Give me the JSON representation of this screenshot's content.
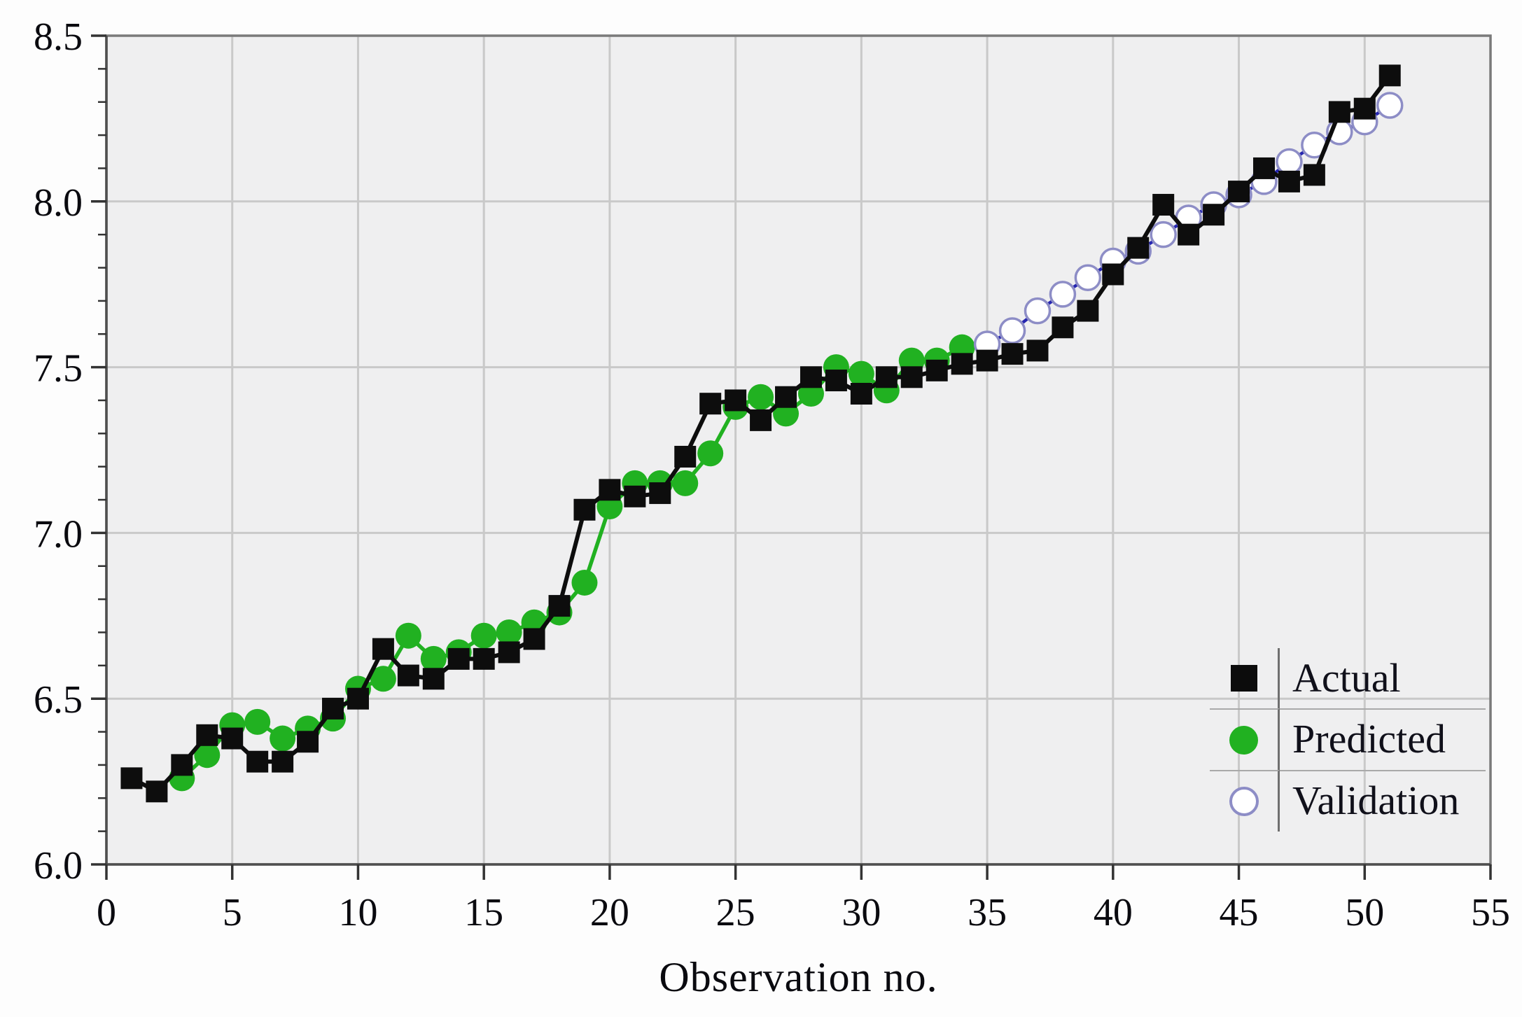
{
  "figure": {
    "background": "#fdfdfd",
    "plot_background": "#efeff0",
    "grid_color": "#c9c9c9",
    "border_color": "#7a7a7a",
    "axis_line_color": "#4f4f4f",
    "tick_color": "#333333",
    "text_color": "#0a0a0f"
  },
  "chart_data": {
    "type": "line",
    "title": "",
    "xlabel": "Observation no.",
    "ylabel": "",
    "xlim": [
      0,
      55
    ],
    "ylim": [
      6.0,
      8.5
    ],
    "grid": true,
    "legend_position": "bottom-right-inside",
    "x_ticks": {
      "values": [
        0,
        5,
        10,
        15,
        20,
        25,
        30,
        35,
        40,
        45,
        50,
        55
      ],
      "labels": [
        "0",
        "5",
        "10",
        "15",
        "20",
        "25",
        "30",
        "35",
        "40",
        "45",
        "50",
        "55"
      ]
    },
    "y_ticks": {
      "values": [
        6.0,
        6.5,
        7.0,
        7.5,
        8.0,
        8.5
      ],
      "labels": [
        "6.0",
        "6.5",
        "7.0",
        "7.5",
        "8.0",
        "8.5"
      ]
    },
    "y_minor_step": 0.1,
    "series": [
      {
        "name": "Actual",
        "marker": "square",
        "color": "#0d0d0d",
        "line_color": "#0d0d0d",
        "x": [
          1,
          2,
          3,
          4,
          5,
          6,
          7,
          8,
          9,
          10,
          11,
          12,
          13,
          14,
          15,
          16,
          17,
          18,
          19,
          20,
          21,
          22,
          23,
          24,
          25,
          26,
          27,
          28,
          29,
          30,
          31,
          32,
          33,
          34,
          35,
          36,
          37,
          38,
          39,
          40,
          41,
          42,
          43,
          44,
          45,
          46,
          47,
          48,
          49,
          50,
          51
        ],
        "y": [
          6.26,
          6.22,
          6.3,
          6.39,
          6.38,
          6.31,
          6.31,
          6.37,
          6.47,
          6.5,
          6.65,
          6.57,
          6.56,
          6.62,
          6.62,
          6.64,
          6.68,
          6.78,
          7.07,
          7.13,
          7.11,
          7.12,
          7.23,
          7.39,
          7.4,
          7.34,
          7.41,
          7.47,
          7.46,
          7.42,
          7.47,
          7.47,
          7.49,
          7.51,
          7.52,
          7.54,
          7.55,
          7.62,
          7.67,
          7.78,
          7.86,
          7.99,
          7.9,
          7.96,
          8.03,
          8.1,
          8.06,
          8.08,
          8.27,
          8.28,
          8.38
        ]
      },
      {
        "name": "Predicted",
        "marker": "circle",
        "color": "#21b121",
        "line_color": "#21b121",
        "x": [
          3,
          4,
          5,
          6,
          7,
          8,
          9,
          10,
          11,
          12,
          13,
          14,
          15,
          16,
          17,
          18,
          19,
          20,
          21,
          22,
          23,
          24,
          25,
          26,
          27,
          28,
          29,
          30,
          31,
          32,
          33,
          34
        ],
        "y": [
          6.26,
          6.33,
          6.42,
          6.43,
          6.38,
          6.41,
          6.44,
          6.53,
          6.56,
          6.69,
          6.62,
          6.64,
          6.69,
          6.7,
          6.73,
          6.76,
          6.85,
          7.08,
          7.15,
          7.15,
          7.15,
          7.24,
          7.38,
          7.41,
          7.36,
          7.42,
          7.5,
          7.48,
          7.43,
          7.52,
          7.52,
          7.56
        ]
      },
      {
        "name": "Validation",
        "marker": "circle-open",
        "color": "#ffffff",
        "edge_color": "#8d8dc6",
        "line_color": "#2525b0",
        "x": [
          35,
          36,
          37,
          38,
          39,
          40,
          41,
          42,
          43,
          44,
          45,
          46,
          47,
          48,
          49,
          50,
          51
        ],
        "y": [
          7.57,
          7.61,
          7.67,
          7.72,
          7.77,
          7.82,
          7.85,
          7.9,
          7.95,
          7.99,
          8.02,
          8.06,
          8.12,
          8.17,
          8.21,
          8.24,
          8.29
        ]
      }
    ]
  },
  "legend": {
    "entries": [
      {
        "label": "Actual"
      },
      {
        "label": "Predicted"
      },
      {
        "label": "Validation"
      }
    ]
  }
}
